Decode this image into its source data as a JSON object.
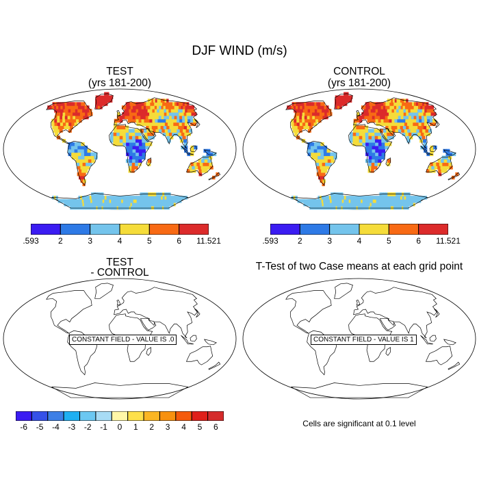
{
  "figure": {
    "title": "DJF WIND (m/s)"
  },
  "panels": {
    "test": {
      "title": "TEST",
      "subtitle": "(yrs 181-200)"
    },
    "control": {
      "title": "CONTROL",
      "subtitle": "(yrs 181-200)"
    },
    "diff": {
      "title": "TEST",
      "subtitle": "- CONTROL",
      "message": "CONSTANT FIELD - VALUE IS .0"
    },
    "ttest": {
      "title": "T-Test of two Case means at each grid point",
      "message": "CONSTANT FIELD - VALUE IS 1",
      "note": "Cells are significant at 0.1 level"
    }
  },
  "colorbars": {
    "wind": {
      "labels": [
        ".593",
        "2",
        "3",
        "4",
        "5",
        "6",
        "11.521"
      ],
      "colors": [
        "#3b1cf2",
        "#2e7ae6",
        "#74c4ec",
        "#f5dc3a",
        "#f86a14",
        "#dc2b2b"
      ]
    },
    "diff": {
      "labels": [
        "-6",
        "-5",
        "-4",
        "-3",
        "-2",
        "-1",
        "0",
        "1",
        "2",
        "3",
        "4",
        "5",
        "6"
      ],
      "colors": [
        "#3b1cf2",
        "#3551e8",
        "#3d7fe6",
        "#1fb0f2",
        "#6cc8f2",
        "#a8dcf5",
        "#fff7a8",
        "#fde04a",
        "#fbb623",
        "#f8910f",
        "#f55a0b",
        "#e0201a",
        "#d52b2b"
      ]
    }
  }
}
